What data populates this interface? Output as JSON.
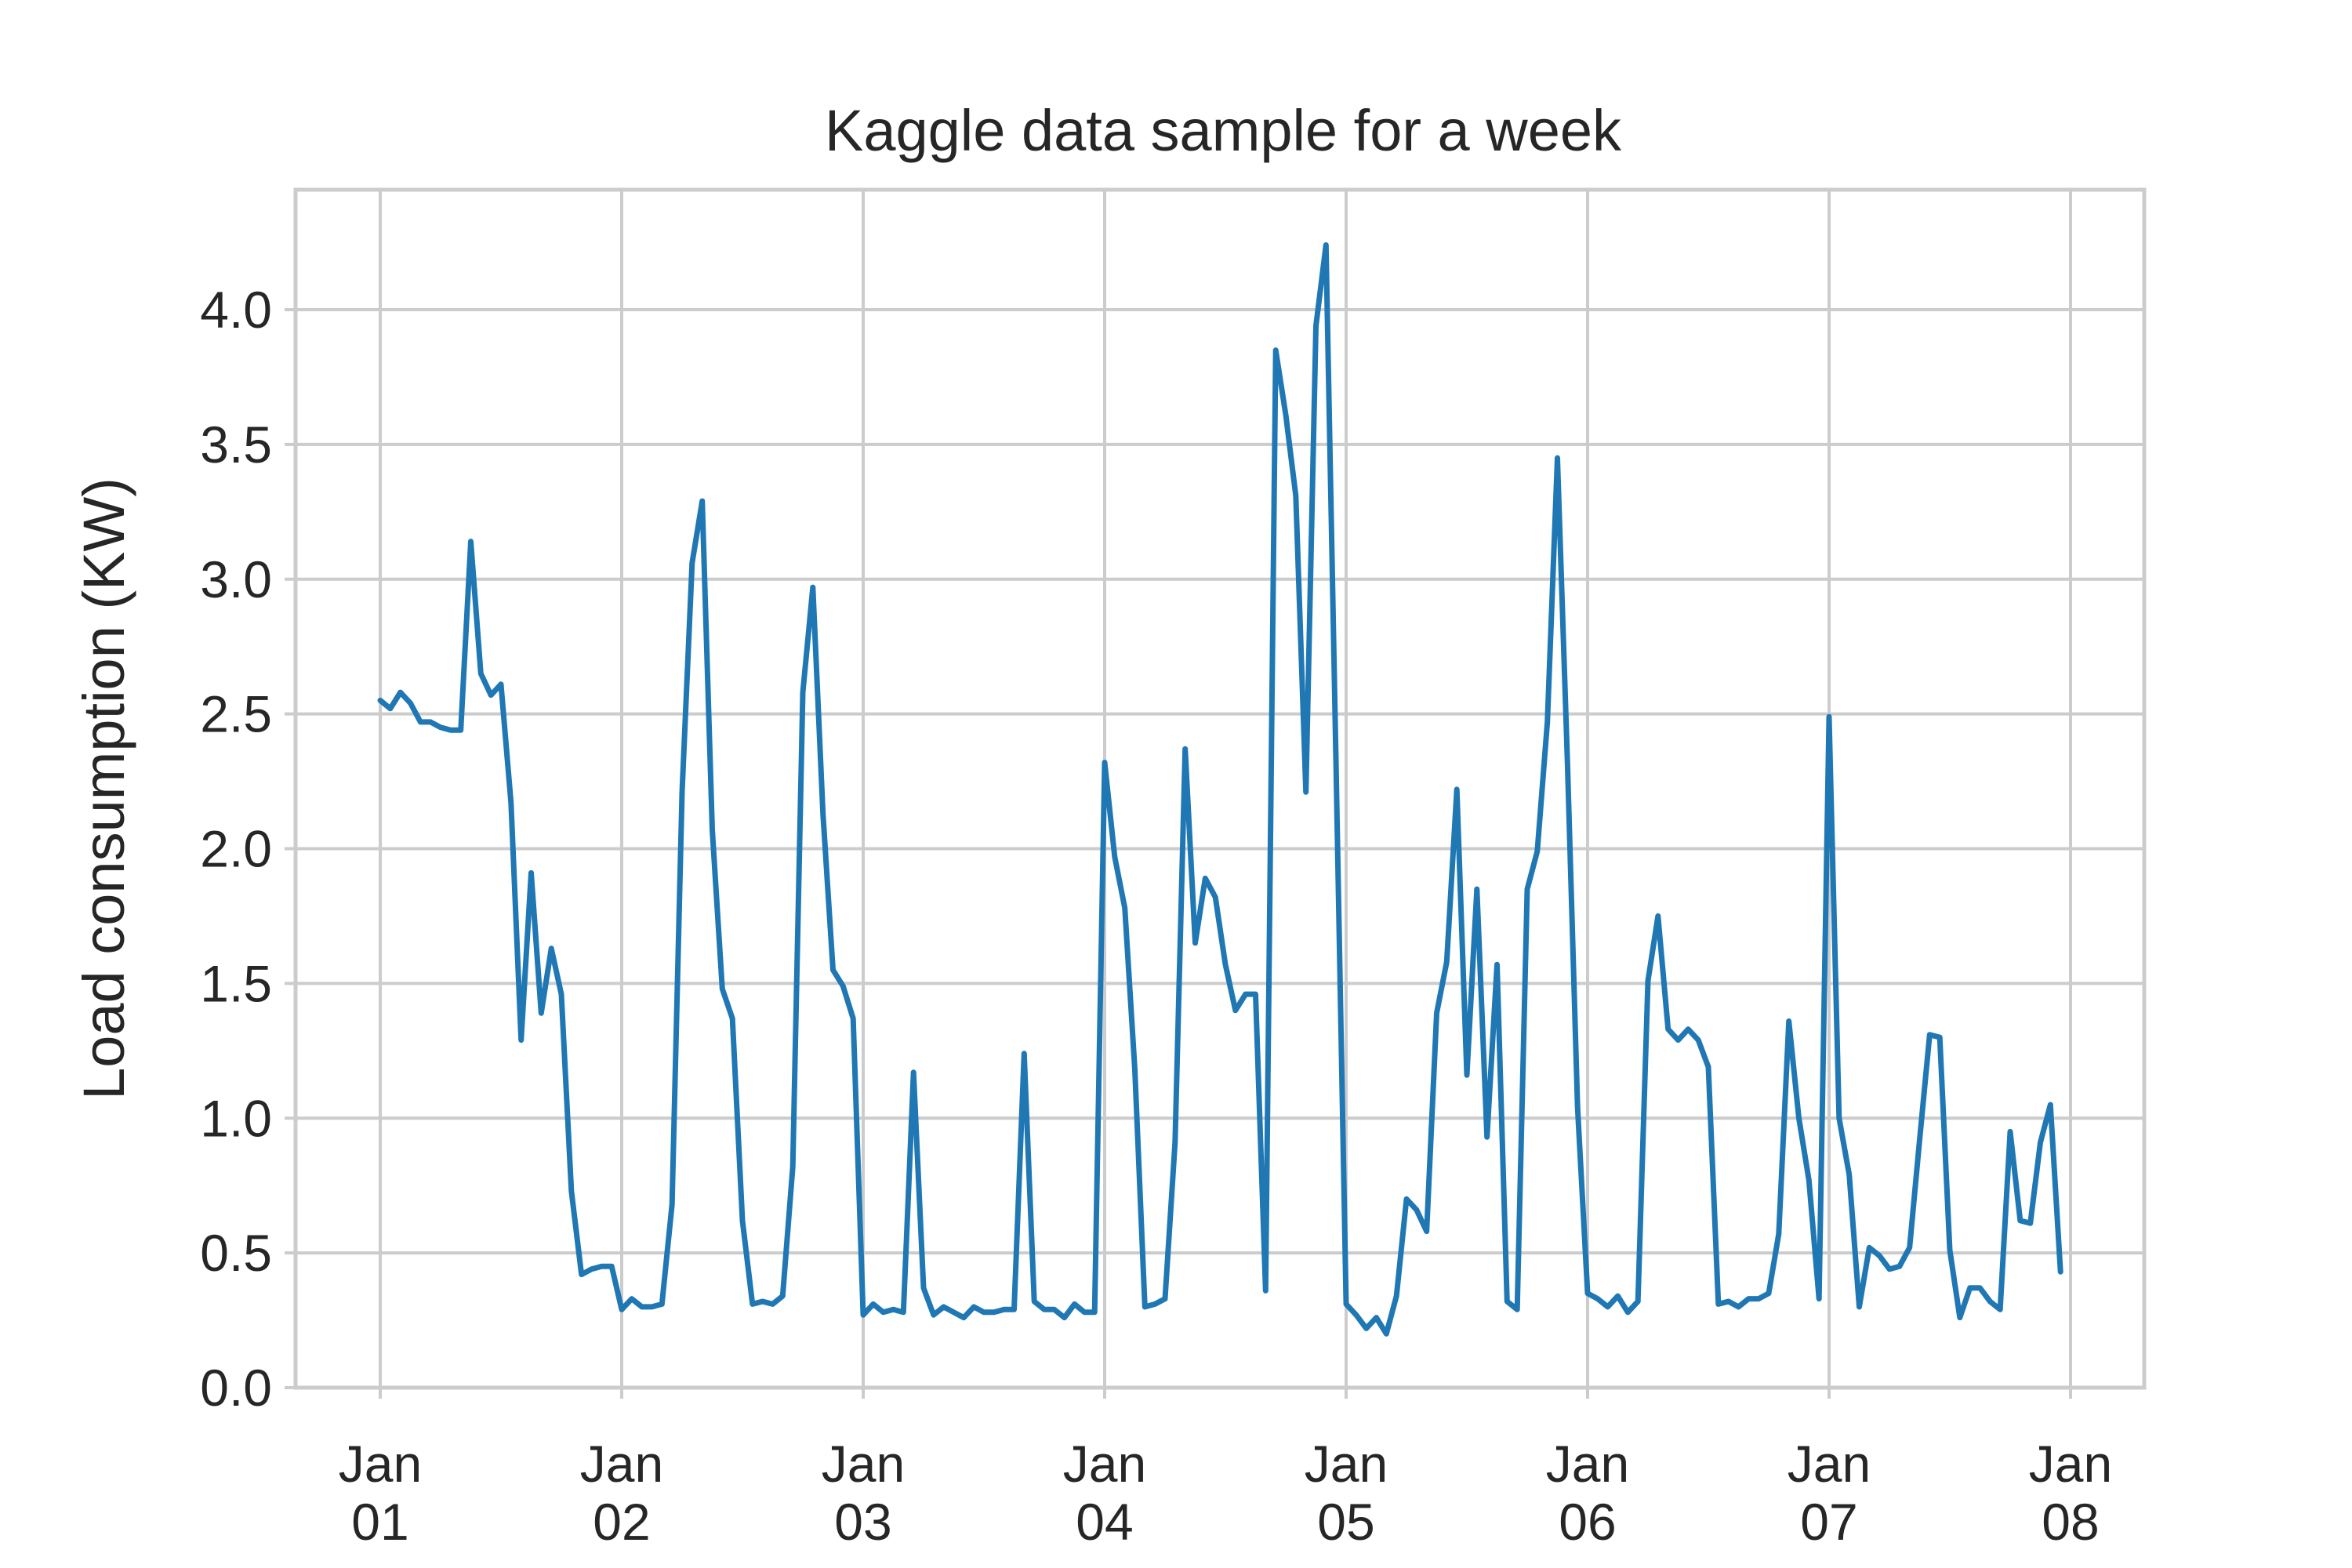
{
  "chart_data": {
    "type": "line",
    "title": "Kaggle data sample for a week",
    "xlabel": "",
    "ylabel": "Load consumption (KW)",
    "grid": true,
    "legend": "none",
    "line_color": "#1f77b4",
    "xlim": [
      "2007-01-01 00:00",
      "2007-01-08 00:00"
    ],
    "ylim": [
      0,
      4.5
    ],
    "x_ticks": [
      {
        "line1": "Jan",
        "line2": "01"
      },
      {
        "line1": "Jan",
        "line2": "02"
      },
      {
        "line1": "Jan",
        "line2": "03"
      },
      {
        "line1": "Jan",
        "line2": "04"
      },
      {
        "line1": "Jan",
        "line2": "05"
      },
      {
        "line1": "Jan",
        "line2": "06"
      },
      {
        "line1": "Jan",
        "line2": "07"
      },
      {
        "line1": "Jan",
        "line2": "08"
      }
    ],
    "y_ticks": [
      "0.0",
      "0.5",
      "1.0",
      "1.5",
      "2.0",
      "2.5",
      "3.0",
      "3.5",
      "4.0"
    ],
    "x": [
      "2007-01-01 00:00",
      "2007-01-01 01:00",
      "2007-01-01 02:00",
      "2007-01-01 03:00",
      "2007-01-01 04:00",
      "2007-01-01 05:00",
      "2007-01-01 06:00",
      "2007-01-01 07:00",
      "2007-01-01 08:00",
      "2007-01-01 09:00",
      "2007-01-01 10:00",
      "2007-01-01 11:00",
      "2007-01-01 12:00",
      "2007-01-01 13:00",
      "2007-01-01 14:00",
      "2007-01-01 15:00",
      "2007-01-01 16:00",
      "2007-01-01 17:00",
      "2007-01-01 18:00",
      "2007-01-01 19:00",
      "2007-01-01 20:00",
      "2007-01-01 21:00",
      "2007-01-01 22:00",
      "2007-01-01 23:00",
      "2007-01-02 00:00",
      "2007-01-02 01:00",
      "2007-01-02 02:00",
      "2007-01-02 03:00",
      "2007-01-02 04:00",
      "2007-01-02 05:00",
      "2007-01-02 06:00",
      "2007-01-02 07:00",
      "2007-01-02 08:00",
      "2007-01-02 09:00",
      "2007-01-02 10:00",
      "2007-01-02 11:00",
      "2007-01-02 12:00",
      "2007-01-02 13:00",
      "2007-01-02 14:00",
      "2007-01-02 15:00",
      "2007-01-02 16:00",
      "2007-01-02 17:00",
      "2007-01-02 18:00",
      "2007-01-02 19:00",
      "2007-01-02 20:00",
      "2007-01-02 21:00",
      "2007-01-02 22:00",
      "2007-01-02 23:00",
      "2007-01-03 00:00",
      "2007-01-03 01:00",
      "2007-01-03 02:00",
      "2007-01-03 03:00",
      "2007-01-03 04:00",
      "2007-01-03 05:00",
      "2007-01-03 06:00",
      "2007-01-03 07:00",
      "2007-01-03 08:00",
      "2007-01-03 09:00",
      "2007-01-03 10:00",
      "2007-01-03 11:00",
      "2007-01-03 12:00",
      "2007-01-03 13:00",
      "2007-01-03 14:00",
      "2007-01-03 15:00",
      "2007-01-03 16:00",
      "2007-01-03 17:00",
      "2007-01-03 18:00",
      "2007-01-03 19:00",
      "2007-01-03 20:00",
      "2007-01-03 21:00",
      "2007-01-03 22:00",
      "2007-01-03 23:00",
      "2007-01-04 00:00",
      "2007-01-04 01:00",
      "2007-01-04 02:00",
      "2007-01-04 03:00",
      "2007-01-04 04:00",
      "2007-01-04 05:00",
      "2007-01-04 06:00",
      "2007-01-04 07:00",
      "2007-01-04 08:00",
      "2007-01-04 09:00",
      "2007-01-04 10:00",
      "2007-01-04 11:00",
      "2007-01-04 12:00",
      "2007-01-04 13:00",
      "2007-01-04 14:00",
      "2007-01-04 15:00",
      "2007-01-04 16:00",
      "2007-01-04 17:00",
      "2007-01-04 18:00",
      "2007-01-04 19:00",
      "2007-01-04 20:00",
      "2007-01-04 21:00",
      "2007-01-04 22:00",
      "2007-01-04 23:00",
      "2007-01-05 00:00",
      "2007-01-05 01:00",
      "2007-01-05 02:00",
      "2007-01-05 03:00",
      "2007-01-05 04:00",
      "2007-01-05 05:00",
      "2007-01-05 06:00",
      "2007-01-05 07:00",
      "2007-01-05 08:00",
      "2007-01-05 09:00",
      "2007-01-05 10:00",
      "2007-01-05 11:00",
      "2007-01-05 12:00",
      "2007-01-05 13:00",
      "2007-01-05 14:00",
      "2007-01-05 15:00",
      "2007-01-05 16:00",
      "2007-01-05 17:00",
      "2007-01-05 18:00",
      "2007-01-05 19:00",
      "2007-01-05 20:00",
      "2007-01-05 21:00",
      "2007-01-05 22:00",
      "2007-01-05 23:00",
      "2007-01-06 00:00",
      "2007-01-06 01:00",
      "2007-01-06 02:00",
      "2007-01-06 03:00",
      "2007-01-06 04:00",
      "2007-01-06 05:00",
      "2007-01-06 06:00",
      "2007-01-06 07:00",
      "2007-01-06 08:00",
      "2007-01-06 09:00",
      "2007-01-06 10:00",
      "2007-01-06 11:00",
      "2007-01-06 12:00",
      "2007-01-06 13:00",
      "2007-01-06 14:00",
      "2007-01-06 15:00",
      "2007-01-06 16:00",
      "2007-01-06 17:00",
      "2007-01-06 18:00",
      "2007-01-06 19:00",
      "2007-01-06 20:00",
      "2007-01-06 21:00",
      "2007-01-06 22:00",
      "2007-01-06 23:00",
      "2007-01-07 00:00",
      "2007-01-07 01:00",
      "2007-01-07 02:00",
      "2007-01-07 03:00",
      "2007-01-07 04:00",
      "2007-01-07 05:00",
      "2007-01-07 06:00",
      "2007-01-07 07:00",
      "2007-01-07 08:00",
      "2007-01-07 09:00",
      "2007-01-07 10:00",
      "2007-01-07 11:00",
      "2007-01-07 12:00",
      "2007-01-07 13:00",
      "2007-01-07 14:00",
      "2007-01-07 15:00",
      "2007-01-07 16:00",
      "2007-01-07 17:00",
      "2007-01-07 18:00",
      "2007-01-07 19:00",
      "2007-01-07 20:00",
      "2007-01-07 21:00",
      "2007-01-07 22:00",
      "2007-01-07 23:00"
    ],
    "series": [
      {
        "values": [
          2.55,
          2.52,
          2.58,
          2.54,
          2.47,
          2.47,
          2.45,
          2.44,
          2.44,
          3.14,
          2.65,
          2.57,
          2.61,
          2.17,
          1.29,
          1.91,
          1.39,
          1.63,
          1.46,
          0.73,
          0.42,
          0.44,
          0.45,
          0.45,
          0.29,
          0.33,
          0.3,
          0.3,
          0.31,
          0.68,
          2.21,
          3.06,
          3.29,
          2.07,
          1.48,
          1.37,
          0.62,
          0.31,
          0.32,
          0.31,
          0.34,
          0.82,
          2.58,
          2.97,
          2.13,
          1.55,
          1.49,
          1.37,
          0.27,
          0.31,
          0.28,
          0.29,
          0.28,
          1.17,
          0.37,
          0.27,
          0.3,
          0.28,
          0.26,
          0.3,
          0.28,
          0.28,
          0.29,
          0.29,
          1.24,
          0.32,
          0.29,
          0.29,
          0.26,
          0.31,
          0.28,
          0.28,
          2.32,
          1.97,
          1.78,
          1.18,
          0.3,
          0.31,
          0.33,
          0.91,
          2.37,
          1.65,
          1.89,
          1.82,
          1.57,
          1.4,
          1.46,
          1.46,
          0.36,
          3.85,
          3.61,
          3.31,
          2.21,
          3.94,
          4.24,
          2.3,
          0.31,
          0.27,
          0.22,
          0.26,
          0.2,
          0.34,
          0.7,
          0.66,
          0.58,
          1.39,
          1.58,
          2.22,
          1.16,
          1.85,
          0.93,
          1.57,
          0.32,
          0.29,
          1.85,
          1.99,
          2.47,
          3.45,
          2.32,
          1.04,
          0.35,
          0.33,
          0.3,
          0.34,
          0.28,
          0.32,
          1.51,
          1.75,
          1.33,
          1.29,
          1.33,
          1.29,
          1.19,
          0.31,
          0.32,
          0.3,
          0.33,
          0.33,
          0.35,
          0.57,
          1.36,
          1.0,
          0.77,
          0.33,
          2.49,
          1.0,
          0.79,
          0.3,
          0.52,
          0.49,
          0.44,
          0.45,
          0.52,
          0.92,
          1.31,
          1.3,
          0.51,
          0.26,
          0.37,
          0.37,
          0.32,
          0.29,
          0.95,
          0.62,
          0.61,
          0.91,
          1.05,
          0.43
        ]
      }
    ]
  }
}
